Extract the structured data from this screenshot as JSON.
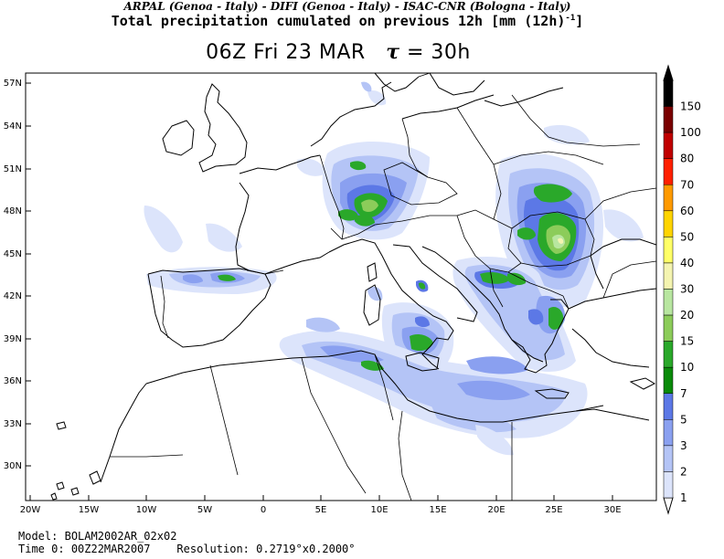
{
  "header": {
    "credits": "ARPAL (Genoa - Italy)  -  DIFI (Genoa - Italy)  -  ISAC-CNR (Bologna - Italy)",
    "title_main": "Total precipitation cumulated on previous 12h [mm (12h)",
    "title_exp": "-1",
    "title_close": "]",
    "valid_time": "06Z Fri 23 MAR",
    "tau_symbol": "τ",
    "tau_value": "= 30h"
  },
  "map": {
    "lat_labels": [
      "57N",
      "54N",
      "51N",
      "48N",
      "45N",
      "42N",
      "39N",
      "36N",
      "33N",
      "30N"
    ],
    "lon_labels": [
      "20W",
      "15W",
      "10W",
      "5W",
      "0",
      "5E",
      "10E",
      "15E",
      "20E",
      "25E",
      "30E"
    ]
  },
  "colorbar": {
    "labels": [
      "150",
      "100",
      "80",
      "70",
      "60",
      "50",
      "40",
      "30",
      "20",
      "15",
      "10",
      "7",
      "5",
      "3",
      "2",
      "1"
    ],
    "colors": [
      "#000000",
      "#7a0000",
      "#c00000",
      "#ff2000",
      "#ff9a00",
      "#ffd400",
      "#ffff66",
      "#f4f4b0",
      "#b8e6a0",
      "#8ccc5a",
      "#2aa82a",
      "#0a8a0a",
      "#5c78e6",
      "#8aa0f0",
      "#b4c4f6",
      "#dce4fb"
    ]
  },
  "footer": {
    "model_label": "Model:",
    "model_value": "BOLAM2002AR_02x02",
    "time_label": "Time 0:",
    "time_value": "00Z22MAR2007",
    "res_label": "Resolution:",
    "res_value": "0.2719°x0.2000°"
  }
}
